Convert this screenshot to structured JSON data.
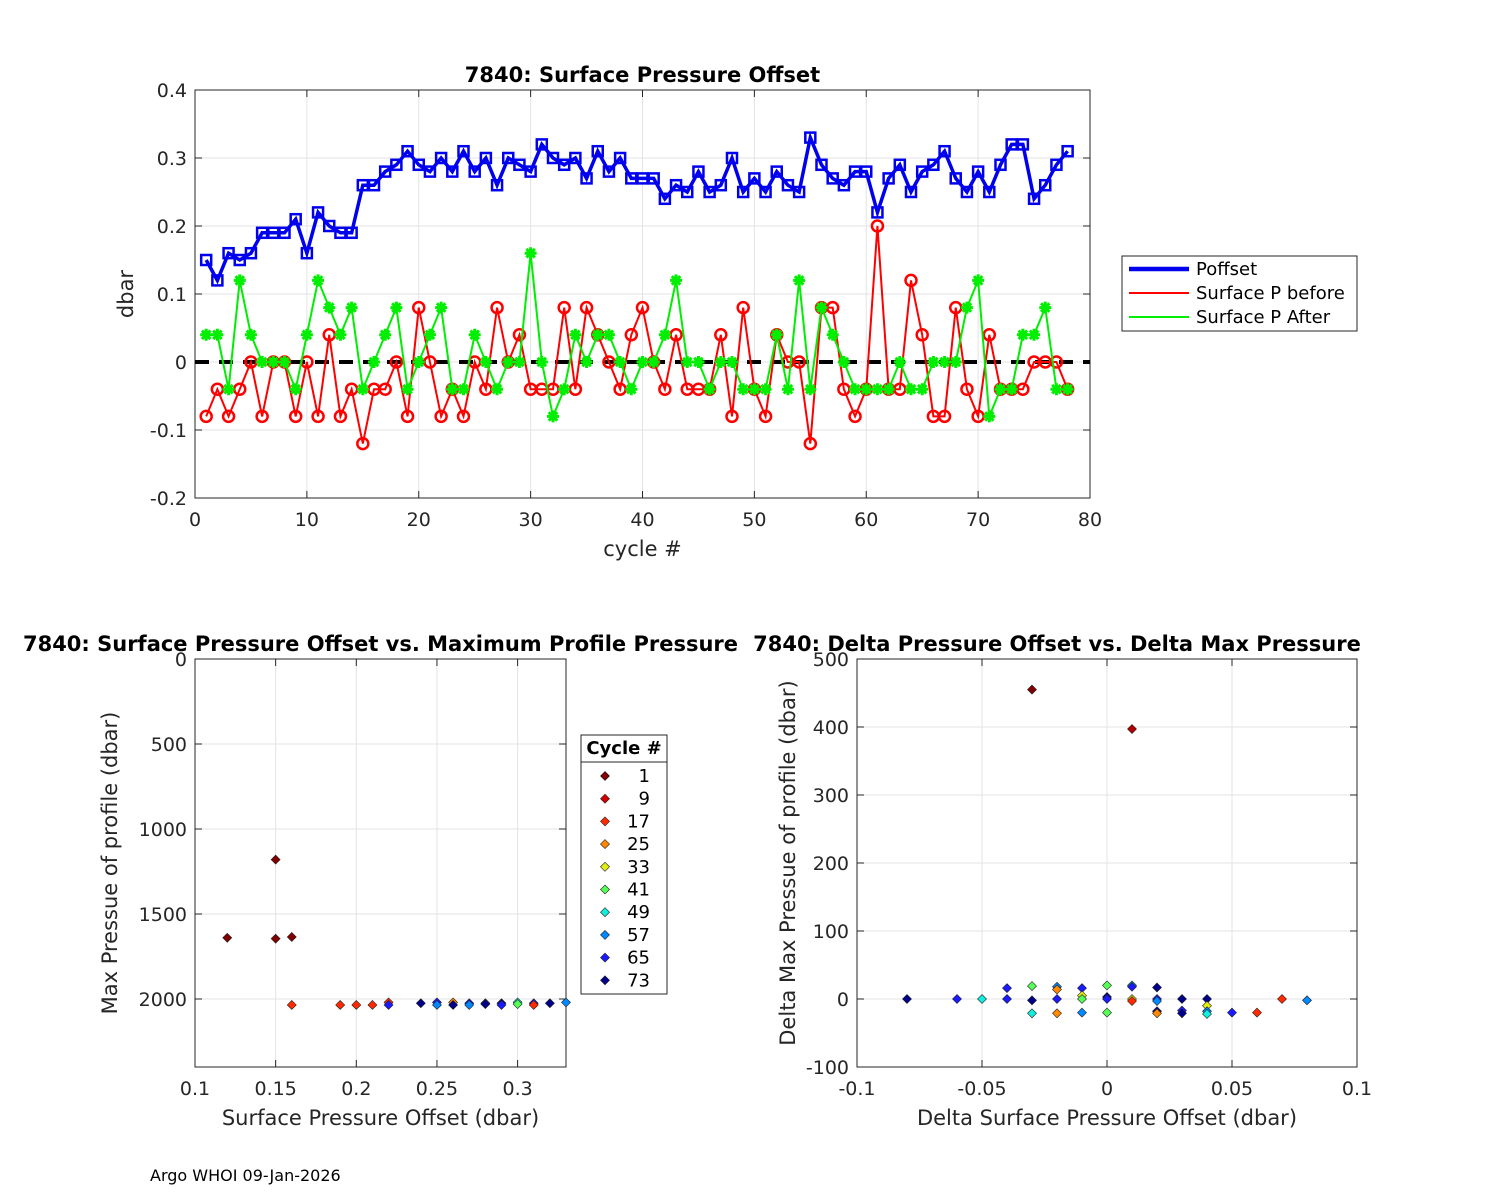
{
  "footer": "Argo WHOI 09-Jan-2026",
  "chart_data": [
    {
      "type": "line",
      "title": "7840: Surface Pressure Offset",
      "xlabel": "cycle #",
      "ylabel": "dbar",
      "xlim": [
        0,
        80
      ],
      "ylim": [
        -0.2,
        0.4
      ],
      "xticks": [
        0,
        10,
        20,
        30,
        40,
        50,
        60,
        70,
        80
      ],
      "yticks": [
        -0.2,
        -0.1,
        0,
        0.1,
        0.2,
        0.3,
        0.4
      ],
      "ytick_labels": [
        "-0.2",
        "-0.1",
        "0",
        "0.1",
        "0.2",
        "0.3",
        "0.4"
      ],
      "grid": true,
      "legend_position": "right",
      "x": [
        1,
        2,
        3,
        4,
        5,
        6,
        7,
        8,
        9,
        10,
        11,
        12,
        13,
        14,
        15,
        16,
        17,
        18,
        19,
        20,
        21,
        22,
        23,
        24,
        25,
        26,
        27,
        28,
        29,
        30,
        31,
        32,
        33,
        34,
        35,
        36,
        37,
        38,
        39,
        40,
        41,
        42,
        43,
        44,
        45,
        46,
        47,
        48,
        49,
        50,
        51,
        52,
        53,
        54,
        55,
        56,
        57,
        58,
        59,
        60,
        61,
        62,
        63,
        64,
        65,
        66,
        67,
        68,
        69,
        70,
        71,
        72,
        73,
        74,
        75,
        76,
        77,
        78
      ],
      "series": [
        {
          "name": "Poffset",
          "color": "#0000ee",
          "marker": "square",
          "values": [
            0.15,
            0.12,
            0.16,
            0.15,
            0.16,
            0.19,
            0.19,
            0.19,
            0.21,
            0.16,
            0.22,
            0.2,
            0.19,
            0.19,
            0.26,
            0.26,
            0.28,
            0.29,
            0.31,
            0.29,
            0.28,
            0.3,
            0.28,
            0.31,
            0.28,
            0.3,
            0.26,
            0.3,
            0.29,
            0.28,
            0.32,
            0.3,
            0.29,
            0.3,
            0.27,
            0.31,
            0.28,
            0.3,
            0.27,
            0.27,
            0.27,
            0.24,
            0.26,
            0.25,
            0.28,
            0.25,
            0.26,
            0.3,
            0.25,
            0.27,
            0.25,
            0.28,
            0.26,
            0.25,
            0.33,
            0.29,
            0.27,
            0.26,
            0.28,
            0.28,
            0.22,
            0.27,
            0.29,
            0.25,
            0.28,
            0.29,
            0.31,
            0.27,
            0.25,
            0.28,
            0.25,
            0.29,
            0.32,
            0.32,
            0.24,
            0.26,
            0.29,
            0.31
          ]
        },
        {
          "name": "Surface P before",
          "color": "#ff0000",
          "marker": "circle",
          "values": [
            -0.08,
            -0.04,
            -0.08,
            -0.04,
            0.0,
            -0.08,
            0.0,
            0.0,
            -0.08,
            0.0,
            -0.08,
            0.04,
            -0.08,
            -0.04,
            -0.12,
            -0.04,
            -0.04,
            0.0,
            -0.08,
            0.08,
            0.0,
            -0.08,
            -0.04,
            -0.08,
            0.0,
            -0.04,
            0.08,
            0.0,
            0.04,
            -0.04,
            -0.04,
            -0.04,
            0.08,
            -0.04,
            0.08,
            0.04,
            0.0,
            -0.04,
            0.04,
            0.08,
            0.0,
            -0.04,
            0.04,
            -0.04,
            -0.04,
            -0.04,
            0.04,
            -0.08,
            0.08,
            -0.04,
            -0.08,
            0.04,
            0.0,
            0.0,
            -0.12,
            0.08,
            0.08,
            -0.04,
            -0.08,
            -0.04,
            0.2,
            -0.04,
            -0.04,
            0.12,
            0.04,
            -0.08,
            -0.08,
            0.08,
            -0.04,
            -0.08,
            0.04,
            -0.04,
            -0.04,
            -0.04,
            0.0,
            0.0,
            0.0,
            -0.04
          ]
        },
        {
          "name": "Surface P After",
          "color": "#00ee00",
          "marker": "star",
          "values": [
            0.04,
            0.04,
            -0.04,
            0.12,
            0.04,
            0.0,
            0.0,
            0.0,
            -0.04,
            0.04,
            0.12,
            0.08,
            0.04,
            0.08,
            -0.04,
            0.0,
            0.04,
            0.08,
            -0.04,
            0.0,
            0.04,
            0.08,
            -0.04,
            -0.04,
            0.04,
            0.0,
            -0.04,
            0.0,
            0.0,
            0.16,
            0.0,
            -0.08,
            -0.04,
            0.04,
            0.0,
            0.04,
            0.04,
            0.0,
            -0.04,
            0.0,
            0.0,
            0.04,
            0.12,
            0.0,
            0.0,
            -0.04,
            0.0,
            0.0,
            -0.04,
            -0.04,
            -0.04,
            0.04,
            -0.04,
            0.12,
            -0.04,
            0.08,
            0.04,
            0.0,
            -0.04,
            -0.04,
            -0.04,
            -0.04,
            0.0,
            -0.04,
            -0.04,
            0.0,
            0.0,
            0.0,
            0.08,
            0.12,
            -0.08,
            -0.04,
            -0.04,
            0.04,
            0.04,
            0.08,
            -0.04,
            -0.04
          ]
        }
      ],
      "reference_line": {
        "y": 0,
        "style": "dashed",
        "color": "#000000"
      },
      "legend": [
        "Poffset",
        "Surface P before",
        "Surface P After"
      ]
    },
    {
      "type": "scatter",
      "title": "7840: Surface Pressure Offset vs. Maximum Profile Pressure",
      "xlabel": "Surface Pressure Offset (dbar)",
      "ylabel": "Max Pressue of profile (dbar)",
      "xlim": [
        0.1,
        0.33
      ],
      "ylim": [
        0,
        2400
      ],
      "y_reversed": true,
      "xticks": [
        0.1,
        0.15,
        0.2,
        0.25,
        0.3
      ],
      "xtick_labels": [
        "0.1",
        "0.15",
        "0.2",
        "0.25",
        "0.3"
      ],
      "yticks": [
        0,
        500,
        1000,
        1500,
        2000
      ],
      "grid": true,
      "colormap": "jet by cycle",
      "legend_title": "Cycle #",
      "legend": [
        {
          "label": "1",
          "color": "#800000"
        },
        {
          "label": "9",
          "color": "#d40000"
        },
        {
          "label": "17",
          "color": "#ff2a00"
        },
        {
          "label": "25",
          "color": "#ff8800"
        },
        {
          "label": "33",
          "color": "#e0ee10"
        },
        {
          "label": "41",
          "color": "#55ff55"
        },
        {
          "label": "49",
          "color": "#10eedd"
        },
        {
          "label": "57",
          "color": "#0088ff"
        },
        {
          "label": "65",
          "color": "#1a1aff"
        },
        {
          "label": "73",
          "color": "#00008a"
        }
      ],
      "points": [
        {
          "x": 0.15,
          "y": 1180,
          "color": "#800000"
        },
        {
          "x": 0.12,
          "y": 1640,
          "color": "#800000"
        },
        {
          "x": 0.15,
          "y": 1645,
          "color": "#800000"
        },
        {
          "x": 0.16,
          "y": 1635,
          "color": "#800000"
        },
        {
          "x": 0.16,
          "y": 2035,
          "color": "#ff2a00"
        },
        {
          "x": 0.19,
          "y": 2035,
          "color": "#ff2a00"
        },
        {
          "x": 0.2,
          "y": 2035,
          "color": "#ff2a00"
        },
        {
          "x": 0.21,
          "y": 2035,
          "color": "#ff2a00"
        },
        {
          "x": 0.22,
          "y": 2020,
          "color": "#ff2a00"
        },
        {
          "x": 0.22,
          "y": 2035,
          "color": "#1a1aff"
        },
        {
          "x": 0.24,
          "y": 2025,
          "color": "#00008a"
        },
        {
          "x": 0.25,
          "y": 2020,
          "color": "#1a1aff"
        },
        {
          "x": 0.25,
          "y": 2035,
          "color": "#0088ff"
        },
        {
          "x": 0.26,
          "y": 2020,
          "color": "#ff8800"
        },
        {
          "x": 0.26,
          "y": 2035,
          "color": "#00008a"
        },
        {
          "x": 0.27,
          "y": 2025,
          "color": "#1a1aff"
        },
        {
          "x": 0.27,
          "y": 2035,
          "color": "#0088ff"
        },
        {
          "x": 0.28,
          "y": 2025,
          "color": "#1a1aff"
        },
        {
          "x": 0.28,
          "y": 2030,
          "color": "#00008a"
        },
        {
          "x": 0.29,
          "y": 2025,
          "color": "#00008a"
        },
        {
          "x": 0.29,
          "y": 2035,
          "color": "#1a1aff"
        },
        {
          "x": 0.3,
          "y": 2020,
          "color": "#10eedd"
        },
        {
          "x": 0.3,
          "y": 2030,
          "color": "#55ff55"
        },
        {
          "x": 0.31,
          "y": 2025,
          "color": "#1a1aff"
        },
        {
          "x": 0.31,
          "y": 2035,
          "color": "#ff2a00"
        },
        {
          "x": 0.32,
          "y": 2025,
          "color": "#00008a"
        },
        {
          "x": 0.33,
          "y": 2020,
          "color": "#0088ff"
        }
      ]
    },
    {
      "type": "scatter",
      "title": "7840: Delta Pressure Offset vs. Delta Max Pressure",
      "xlabel": "Delta Surface Pressure Offset (dbar)",
      "ylabel": "Delta Max Pressue of profile (dbar)",
      "xlim": [
        -0.1,
        0.1
      ],
      "ylim": [
        -100,
        500
      ],
      "xticks": [
        -0.1,
        -0.05,
        0,
        0.05,
        0.1
      ],
      "xtick_labels": [
        "-0.1",
        "-0.05",
        "0",
        "0.05",
        "0.1"
      ],
      "yticks": [
        -100,
        0,
        100,
        200,
        300,
        400,
        500
      ],
      "grid": true,
      "points": [
        {
          "x": -0.03,
          "y": 455,
          "color": "#800000"
        },
        {
          "x": 0.01,
          "y": 397,
          "color": "#b00000"
        },
        {
          "x": -0.08,
          "y": 0,
          "color": "#00008a"
        },
        {
          "x": -0.06,
          "y": 0,
          "color": "#1a1aff"
        },
        {
          "x": -0.05,
          "y": 0,
          "color": "#10eedd"
        },
        {
          "x": -0.04,
          "y": 0,
          "color": "#1a1aff"
        },
        {
          "x": -0.04,
          "y": 16,
          "color": "#1a1aff"
        },
        {
          "x": -0.03,
          "y": 19,
          "color": "#55ff55"
        },
        {
          "x": -0.03,
          "y": -2,
          "color": "#00008a"
        },
        {
          "x": -0.03,
          "y": -21,
          "color": "#10eedd"
        },
        {
          "x": -0.02,
          "y": 18,
          "color": "#0088ff"
        },
        {
          "x": -0.02,
          "y": 14,
          "color": "#ff8800"
        },
        {
          "x": -0.02,
          "y": 0,
          "color": "#1a1aff"
        },
        {
          "x": -0.02,
          "y": -21,
          "color": "#ff8800"
        },
        {
          "x": -0.01,
          "y": 16,
          "color": "#1a1aff"
        },
        {
          "x": -0.01,
          "y": 5,
          "color": "#e0ee10"
        },
        {
          "x": -0.01,
          "y": 0,
          "color": "#55ff55"
        },
        {
          "x": -0.01,
          "y": -20,
          "color": "#0088ff"
        },
        {
          "x": 0.0,
          "y": 20,
          "color": "#55ff55"
        },
        {
          "x": 0.0,
          "y": 3,
          "color": "#00008a"
        },
        {
          "x": 0.0,
          "y": 0,
          "color": "#1a1aff"
        },
        {
          "x": 0.0,
          "y": -20,
          "color": "#55ff55"
        },
        {
          "x": 0.01,
          "y": 20,
          "color": "#10eedd"
        },
        {
          "x": 0.01,
          "y": 18,
          "color": "#1a1aff"
        },
        {
          "x": 0.01,
          "y": 0,
          "color": "#e0ee10"
        },
        {
          "x": 0.01,
          "y": -3,
          "color": "#ff2a00"
        },
        {
          "x": 0.02,
          "y": 17,
          "color": "#00008a"
        },
        {
          "x": 0.02,
          "y": 0,
          "color": "#1a1aff"
        },
        {
          "x": 0.02,
          "y": -3,
          "color": "#0088ff"
        },
        {
          "x": 0.02,
          "y": -18,
          "color": "#00008a"
        },
        {
          "x": 0.02,
          "y": -21,
          "color": "#ff8800"
        },
        {
          "x": 0.03,
          "y": 0,
          "color": "#00008a"
        },
        {
          "x": 0.03,
          "y": -17,
          "color": "#1a1aff"
        },
        {
          "x": 0.03,
          "y": -21,
          "color": "#00008a"
        },
        {
          "x": 0.04,
          "y": 0,
          "color": "#00008a"
        },
        {
          "x": 0.04,
          "y": -10,
          "color": "#e0ee10"
        },
        {
          "x": 0.04,
          "y": -18,
          "color": "#0088ff"
        },
        {
          "x": 0.04,
          "y": -22,
          "color": "#10eedd"
        },
        {
          "x": 0.05,
          "y": -20,
          "color": "#1a1aff"
        },
        {
          "x": 0.06,
          "y": -20,
          "color": "#ff2a00"
        },
        {
          "x": 0.07,
          "y": 0,
          "color": "#ff2a00"
        },
        {
          "x": 0.08,
          "y": -2,
          "color": "#0088ff"
        }
      ]
    }
  ]
}
